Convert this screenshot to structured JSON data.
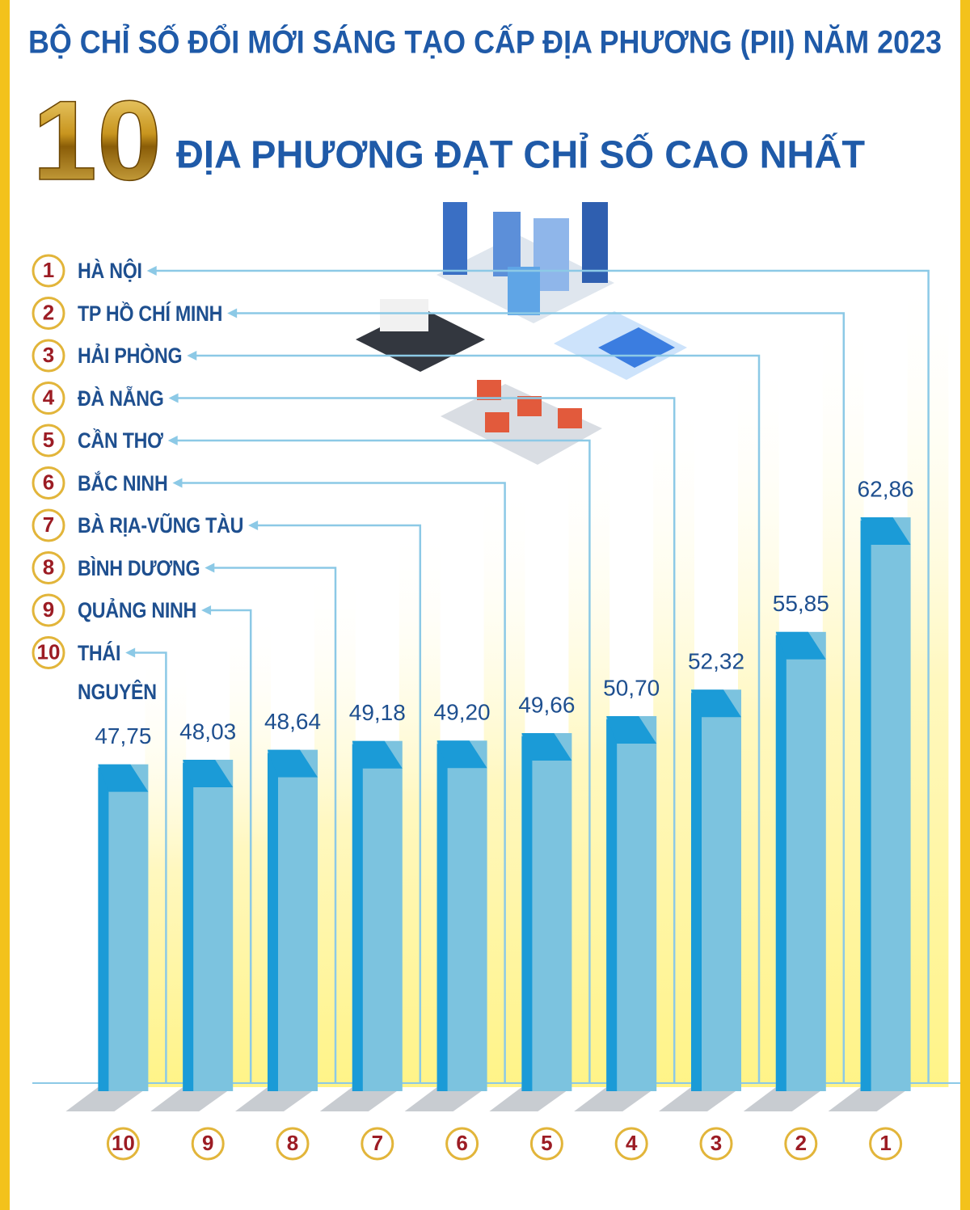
{
  "chart_data": {
    "type": "bar",
    "title": "BỘ CHỈ SỐ ĐỔI MỚI SÁNG TẠO CẤP ĐỊA PHƯƠNG (PII) NĂM 2023",
    "headline_number": "10",
    "headline": "ĐỊA PHƯƠNG ĐẠT CHỈ SỐ CAO NHẤT",
    "ranks": [
      1,
      2,
      3,
      4,
      5,
      6,
      7,
      8,
      9,
      10
    ],
    "categories": [
      "HÀ NỘI",
      "TP HỒ CHÍ MINH",
      "HẢI PHÒNG",
      "ĐÀ NẴNG",
      "CẦN THƠ",
      "BẮC NINH",
      "BÀ RỊA-VŨNG TÀU",
      "BÌNH DƯƠNG",
      "QUẢNG NINH",
      "THÁI NGUYÊN"
    ],
    "values": [
      62.86,
      55.85,
      52.32,
      50.7,
      49.66,
      49.2,
      49.18,
      48.64,
      48.03,
      47.75
    ],
    "value_labels": [
      "62,86",
      "55,85",
      "52,32",
      "50,70",
      "49,66",
      "49,20",
      "49,18",
      "48,64",
      "48,03",
      "47,75"
    ],
    "ylim": [
      28,
      64
    ],
    "color": "#7cc3df"
  }
}
